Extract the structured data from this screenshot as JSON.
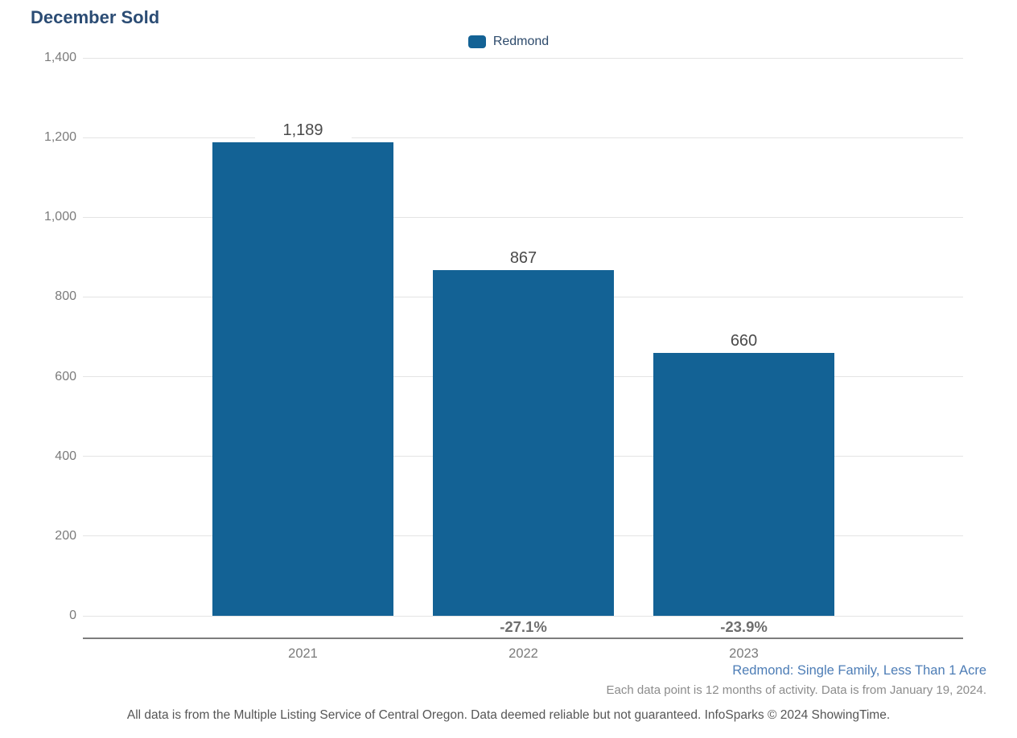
{
  "title": "December Sold",
  "legend": {
    "label": "Redmond"
  },
  "chart_data": {
    "type": "bar",
    "title": "December Sold",
    "categories": [
      "2021",
      "2022",
      "2023"
    ],
    "series": [
      {
        "name": "Redmond",
        "values": [
          1189,
          867,
          660
        ]
      }
    ],
    "value_labels": [
      "1,189",
      "867",
      "660"
    ],
    "pct_change_labels": [
      "",
      "-27.1%",
      "-23.9%"
    ],
    "xlabel": "",
    "ylabel": "",
    "ylim": [
      0,
      1400
    ],
    "ytick_step": 200,
    "yticks": [
      "0",
      "200",
      "400",
      "600",
      "800",
      "1,000",
      "1,200",
      "1,400"
    ],
    "grid": true,
    "legend_position": "top-center"
  },
  "footnotes": {
    "filter": "Redmond: Single Family, Less Than 1 Acre",
    "data_note": "Each data point is 12 months of activity. Data is from January 19, 2024.",
    "disclaimer": "All data is from the Multiple Listing Service of Central Oregon. Data deemed reliable but not guaranteed. InfoSparks © 2024 ShowingTime."
  },
  "colors": {
    "bar": "#136295",
    "title_text": "#2b4c74",
    "legend_text": "#2d4a6b",
    "footnote_accent": "#4d7db6",
    "gridline": "#e4e4e4",
    "axis_line": "#7d7d7d",
    "tick_label": "#7b7b7b",
    "value_label": "#4a4a4a",
    "pct_label": "#6e6e6e",
    "footnote_gray": "#8c8c8c",
    "disclaimer_text": "#565656"
  }
}
